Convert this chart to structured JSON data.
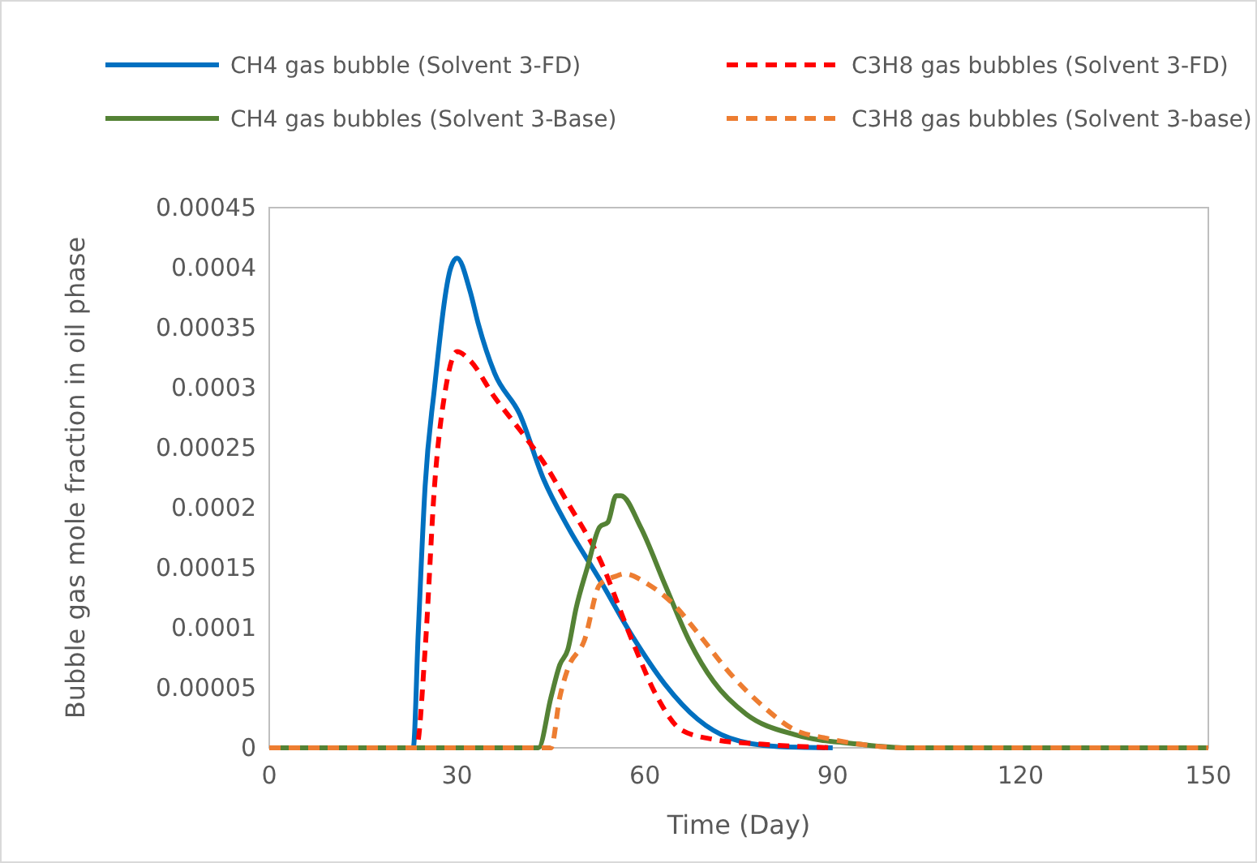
{
  "chart_data": {
    "type": "line",
    "xlabel": "Time (Day)",
    "ylabel": "Bubble gas mole fraction in oil phase",
    "xlim": [
      0,
      150
    ],
    "xticks": [
      0,
      30,
      60,
      90,
      120,
      150
    ],
    "ylim": [
      0,
      0.00045
    ],
    "yticks": [
      0,
      {
        "value": 5e-05,
        "label": "0.00005"
      },
      {
        "value": 0.0001,
        "label": "0.0001"
      },
      {
        "value": 0.00015,
        "label": "0.00015"
      },
      {
        "value": 0.0002,
        "label": "0.0002"
      },
      {
        "value": 0.00025,
        "label": "0.00025"
      },
      {
        "value": 0.0003,
        "label": "0.0003"
      },
      {
        "value": 0.00035,
        "label": "0.00035"
      },
      {
        "value": 0.0004,
        "label": "0.0004"
      },
      {
        "value": 0.00045,
        "label": "0.00045"
      }
    ],
    "grid": false,
    "legend": "top",
    "marker": "none",
    "series": [
      {
        "name": "CH4 gas bubble (Solvent 3-FD)",
        "color": "#0070c0",
        "line_style": "solid",
        "x": [
          0,
          23,
          23.8,
          24.9,
          26.4,
          29,
          30,
          32.1,
          33.4,
          36,
          40,
          43.8,
          47.7,
          52.8,
          58,
          63.2,
          68.4,
          73.6,
          81.3,
          90
        ],
        "values": [
          0,
          0,
          9.6e-05,
          0.000218,
          0.0003,
          0.0004,
          0.000408,
          0.00038,
          0.000353,
          0.000312,
          0.000278,
          0.000224,
          0.000184,
          0.00014,
          9.3e-05,
          5.3e-05,
          2.4e-05,
          8e-06,
          1e-06,
          0
        ]
      },
      {
        "name": "C3H8 gas bubbles (Solvent 3-FD)",
        "color": "#ff0000",
        "line_style": "dashed",
        "x": [
          0,
          23.5,
          24.9,
          26.4,
          28.2,
          30,
          32,
          36,
          40,
          43.8,
          47.7,
          52.8,
          58,
          62,
          65.8,
          71,
          78.8,
          90
        ],
        "values": [
          0,
          0,
          8.2e-05,
          0.000218,
          0.0003,
          0.00033,
          0.000323,
          0.000292,
          0.000265,
          0.000238,
          0.000204,
          0.000157,
          8.9e-05,
          4.2e-05,
          1.5e-05,
          7e-06,
          3e-06,
          0
        ]
      },
      {
        "name": "CH4 gas bubbles (Solvent 3-Base)",
        "color": "#548235",
        "line_style": "solid",
        "x": [
          0,
          43,
          45,
          46.4,
          47.7,
          49,
          50.8,
          52.8,
          54.1,
          55.4,
          56.2,
          59.3,
          63.2,
          67.1,
          71,
          76.2,
          83.9,
          94.3,
          102,
          150
        ],
        "values": [
          0,
          0,
          4.2e-05,
          6.9e-05,
          8.2e-05,
          0.000116,
          0.00015,
          0.000184,
          0.000188,
          0.00021,
          0.00021,
          0.000184,
          0.000136,
          8.9e-05,
          5.5e-05,
          2.8e-05,
          1.1e-05,
          3e-06,
          0,
          0
        ]
      },
      {
        "name": "C3H8 gas bubbles (Solvent 3-base)",
        "color": "#ed7d31",
        "line_style": "dashed",
        "x": [
          0,
          45,
          46.4,
          47.7,
          50.3,
          52.8,
          55.4,
          56.7,
          60.6,
          64.5,
          68.4,
          73.6,
          78.8,
          83.9,
          89,
          94.3,
          102,
          150
        ],
        "values": [
          0,
          0,
          4.2e-05,
          6.6e-05,
          8.9e-05,
          0.000136,
          0.000143,
          0.000145,
          0.000136,
          0.00012,
          9.6e-05,
          6.2e-05,
          3.5e-05,
          1.5e-05,
          8e-06,
          3e-06,
          0,
          0
        ]
      }
    ]
  }
}
